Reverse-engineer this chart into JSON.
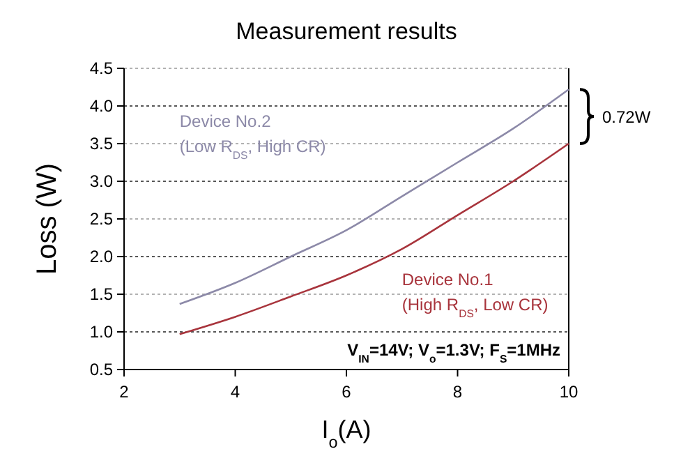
{
  "chart_data": {
    "type": "line",
    "title": "Measurement results",
    "xlabel": "I$_{o}$(A)",
    "ylabel": "Loss (W)",
    "x": [
      3,
      4,
      5,
      6,
      7,
      8,
      9,
      10
    ],
    "series": [
      {
        "name": "Device No.2 (Low R$_{DS}$, High CR)",
        "color": "#8c89a8",
        "values": [
          1.37,
          1.65,
          2.0,
          2.35,
          2.8,
          3.25,
          3.7,
          4.22
        ]
      },
      {
        "name": "Device No.1 (High R$_{DS}$, Low CR)",
        "color": "#a8343c",
        "values": [
          0.97,
          1.2,
          1.47,
          1.75,
          2.1,
          2.55,
          3.0,
          3.5
        ]
      }
    ],
    "xlim": [
      2,
      10
    ],
    "xticks": [
      2,
      4,
      6,
      8,
      10
    ],
    "ylim": [
      0.5,
      4.5
    ],
    "yticks": [
      {
        "value": 0.5,
        "label": "0.5"
      },
      {
        "value": 1,
        "label": "1.0"
      },
      {
        "value": 1.5,
        "label": "1.5"
      },
      {
        "value": 2,
        "label": "2.0"
      },
      {
        "value": 2.5,
        "label": "2.5"
      },
      {
        "value": 3,
        "label": "3.0"
      },
      {
        "value": 3.5,
        "label": "3.5"
      },
      {
        "value": 4,
        "label": "4.0"
      },
      {
        "value": 4.5,
        "label": "4.5"
      }
    ],
    "grid": "y",
    "marker": "none",
    "line_style": "solid",
    "annotations": [
      "0.72W",
      "V$_{IN}$=14V; V$_{o}$=1.3V; F$_{S}$=1MHz"
    ]
  }
}
